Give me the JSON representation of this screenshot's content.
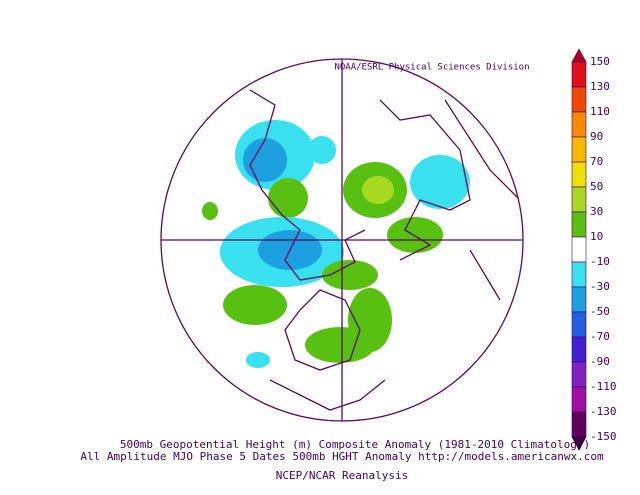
{
  "header": {
    "credit": "NOAA/ESRL Physical Sciences Division"
  },
  "footer": {
    "line1": "500mb Geopotential Height (m) Composite Anomaly (1981-2010 Climatology)",
    "line2": "All Amplitude MJO Phase 5 Dates 500mb HGHT Anomaly http://models.americanwx.com",
    "line3": "NCEP/NCAR Reanalysis"
  },
  "colorbar": {
    "levels": [
      150,
      130,
      110,
      90,
      70,
      50,
      30,
      10,
      -10,
      -30,
      -50,
      -70,
      -90,
      -110,
      -130,
      -150
    ],
    "colors": [
      "#e01018",
      "#f04a00",
      "#f88a00",
      "#f8b800",
      "#f0e000",
      "#a8d820",
      "#58c010",
      "#ffffff",
      "#38e0f0",
      "#1ca0e0",
      "#2060e0",
      "#4020d0",
      "#8020c0",
      "#a010a0",
      "#600060"
    ],
    "over_color": "#b00020",
    "under_color": "#3a0038"
  }
}
